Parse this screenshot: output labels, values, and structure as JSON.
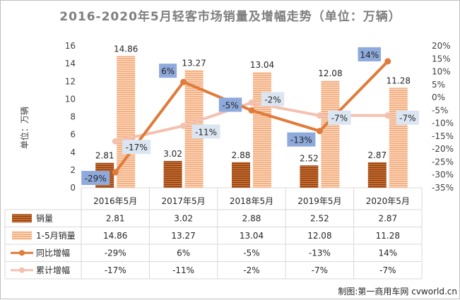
{
  "title": "2016-2020年5月轻客市场销量及增幅走势（单位：万辆）",
  "credit": "制图:第一商用车网 cvworld.cn",
  "colors": {
    "sales": "#c2692e",
    "cumulative": "#f4b183",
    "yoy": "#e07b39",
    "cum_growth": "#f4c0b0",
    "dark_label_bg": "#8ea9db",
    "light_label_bg": "#dce6f2"
  },
  "chart_data": {
    "type": "bar",
    "title": "2016-2020年5月轻客市场销量及增幅走势（单位：万辆）",
    "categories": [
      "2016年5月",
      "2017年5月",
      "2018年5月",
      "2019年5月",
      "2020年5月"
    ],
    "ylabel": "单位：万辆",
    "ylim": [
      0,
      16
    ],
    "yticks": [
      "0",
      "2",
      "4",
      "6",
      "8",
      "10",
      "12",
      "14",
      "16"
    ],
    "y2lim": [
      -35,
      20
    ],
    "y2ticks": [
      "-35%",
      "-30%",
      "-25%",
      "-20%",
      "-15%",
      "-10%",
      "-5%",
      "0%",
      "5%",
      "10%",
      "15%",
      "20%"
    ],
    "grid": false,
    "legend": "bottom-table",
    "series": [
      {
        "name": "销量",
        "kind": "bar",
        "axis": "left",
        "values": [
          2.81,
          3.02,
          2.88,
          2.52,
          2.87
        ],
        "labels": [
          "2.81",
          "3.02",
          "2.88",
          "2.52",
          "2.87"
        ]
      },
      {
        "name": "1-5月销量",
        "kind": "bar",
        "axis": "left",
        "values": [
          14.86,
          13.27,
          13.04,
          12.08,
          11.28
        ],
        "labels": [
          "14.86",
          "13.27",
          "13.04",
          "12.08",
          "11.28"
        ]
      },
      {
        "name": "同比增幅",
        "kind": "line",
        "axis": "right",
        "values": [
          -29,
          6,
          -5,
          -13,
          14
        ],
        "labels": [
          "-29%",
          "6%",
          "-5%",
          "-13%",
          "14%"
        ]
      },
      {
        "name": "累计增幅",
        "kind": "line",
        "axis": "right",
        "values": [
          -17,
          -11,
          -2,
          -7,
          -7
        ],
        "labels": [
          "-17%",
          "-11%",
          "-2%",
          "-7%",
          "-7%"
        ]
      }
    ]
  }
}
